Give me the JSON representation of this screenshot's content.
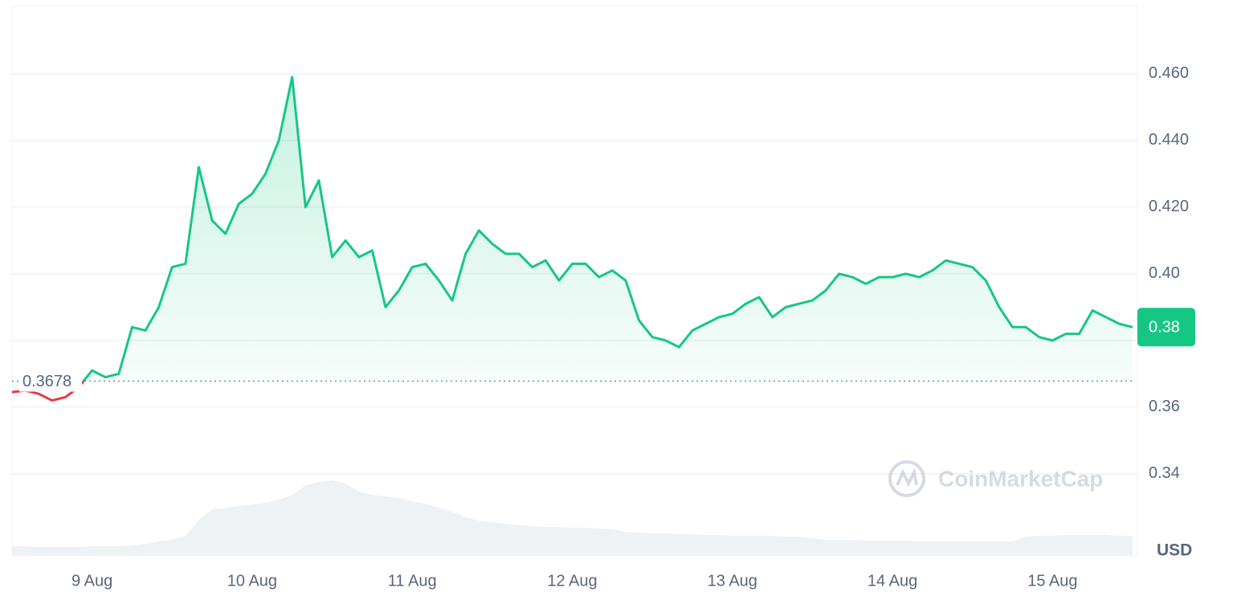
{
  "chart_data": {
    "type": "line",
    "categories": [
      null,
      null,
      null,
      null,
      null,
      null,
      "9 Aug",
      null,
      null,
      null,
      null,
      null,
      null,
      null,
      null,
      null,
      null,
      null,
      "10 Aug",
      null,
      null,
      null,
      null,
      null,
      null,
      null,
      null,
      null,
      null,
      null,
      "11 Aug",
      null,
      null,
      null,
      null,
      null,
      null,
      null,
      null,
      null,
      null,
      null,
      "12 Aug",
      null,
      null,
      null,
      null,
      null,
      null,
      null,
      null,
      null,
      null,
      null,
      "13 Aug",
      null,
      null,
      null,
      null,
      null,
      null,
      null,
      null,
      null,
      null,
      null,
      "14 Aug",
      null,
      null,
      null,
      null,
      null,
      null,
      null,
      null,
      null,
      null,
      null,
      "15 Aug",
      null,
      null,
      null,
      null,
      null,
      null
    ],
    "series": [
      {
        "color": "#16c784",
        "down_color": "#ea3943",
        "values": [
          0.3645,
          0.365,
          0.364,
          0.362,
          0.363,
          0.366,
          0.371,
          0.369,
          0.37,
          0.384,
          0.383,
          0.39,
          0.402,
          0.403,
          0.432,
          0.416,
          0.412,
          0.421,
          0.424,
          0.43,
          0.44,
          0.459,
          0.42,
          0.428,
          0.405,
          0.41,
          0.405,
          0.407,
          0.39,
          0.395,
          0.402,
          0.403,
          0.398,
          0.392,
          0.406,
          0.413,
          0.409,
          0.406,
          0.406,
          0.402,
          0.404,
          0.398,
          0.403,
          0.403,
          0.399,
          0.401,
          0.398,
          0.386,
          0.381,
          0.38,
          0.378,
          0.383,
          0.385,
          0.387,
          0.388,
          0.391,
          0.393,
          0.387,
          0.39,
          0.391,
          0.392,
          0.395,
          0.4,
          0.399,
          0.397,
          0.399,
          0.399,
          0.4,
          0.399,
          0.401,
          0.404,
          0.403,
          0.402,
          0.398,
          0.39,
          0.384,
          0.384,
          0.381,
          0.38,
          0.382,
          0.382,
          0.389,
          0.387,
          0.385,
          0.384
        ]
      }
    ],
    "volume": {
      "color": "#eff2f5",
      "values": [
        12,
        12,
        11,
        11,
        11,
        11,
        12,
        12,
        12,
        13,
        15,
        18,
        20,
        25,
        45,
        58,
        60,
        62,
        64,
        66,
        70,
        76,
        88,
        92,
        94,
        90,
        80,
        76,
        74,
        72,
        68,
        65,
        60,
        55,
        48,
        44,
        42,
        40,
        38,
        37,
        36,
        36,
        35,
        35,
        34,
        33,
        30,
        29,
        28,
        28,
        27,
        27,
        26,
        26,
        25,
        25,
        25,
        25,
        24,
        24,
        22,
        20,
        20,
        20,
        19,
        19,
        19,
        19,
        18,
        18,
        18,
        18,
        18,
        18,
        18,
        18,
        24,
        25,
        25,
        26,
        26,
        26,
        26,
        25,
        25
      ]
    },
    "ylim": [
      0.3154,
      0.4802
    ],
    "yticks": [
      {
        "value": 0.34,
        "label": "0.34"
      },
      {
        "value": 0.36,
        "label": "0.36"
      },
      {
        "value": 0.38,
        "label": "0.38"
      },
      {
        "value": 0.4,
        "label": "0.40"
      },
      {
        "value": 0.42,
        "label": "0.420"
      },
      {
        "value": 0.44,
        "label": "0.440"
      },
      {
        "value": 0.46,
        "label": "0.460"
      }
    ],
    "grid": true,
    "y_axis_label": "USD",
    "baseline": {
      "value": 0.3678,
      "label": "0.3678"
    },
    "current_price": {
      "value": 0.384,
      "label": "0.38"
    },
    "watermark": "CoinMarketCap"
  }
}
